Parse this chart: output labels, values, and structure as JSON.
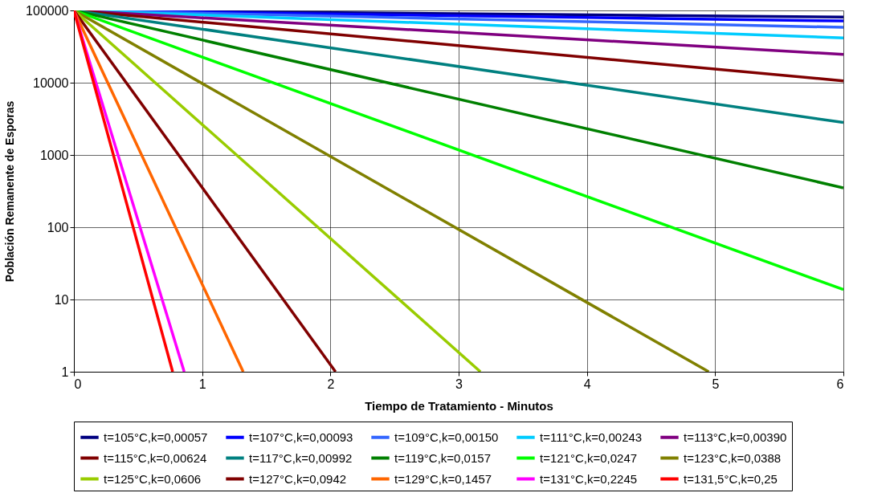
{
  "chart_data": {
    "type": "line",
    "xlabel": "Tiempo de Tratamiento - Minutos",
    "ylabel": "Población Remanente de Esporas",
    "log": "y",
    "grid": true,
    "legend": "bottom",
    "marker": "none",
    "line_style": "solid",
    "xlim": [
      0,
      6
    ],
    "xticks": [
      0,
      1,
      2,
      3,
      4,
      5,
      6
    ],
    "ylim": [
      1,
      100000
    ],
    "yticks": [
      1,
      10,
      100,
      1000,
      10000,
      100000
    ],
    "series": [
      {
        "name": "t=105°C,k=0,00057",
        "color": "#000080",
        "x": [
          0,
          6
        ],
        "values": [
          100000,
          81000
        ]
      },
      {
        "name": "t=107°C,k=0,00093",
        "color": "#0000ff",
        "x": [
          0,
          6
        ],
        "values": [
          100000,
          71500
        ]
      },
      {
        "name": "t=109°C,k=0,00150",
        "color": "#3366ff",
        "x": [
          0,
          6
        ],
        "values": [
          100000,
          58300
        ]
      },
      {
        "name": "t=111°C,k=0,00243",
        "color": "#00ccff",
        "x": [
          0,
          6
        ],
        "values": [
          100000,
          41700
        ]
      },
      {
        "name": "t=113°C,k=0,00390",
        "color": "#800080",
        "x": [
          0,
          6
        ],
        "values": [
          100000,
          24600
        ]
      },
      {
        "name": "t=115°C,k=0,00624",
        "color": "#800000",
        "x": [
          0,
          6
        ],
        "values": [
          100000,
          10600
        ]
      },
      {
        "name": "t=117°C,k=0,00992",
        "color": "#008080",
        "x": [
          0,
          6
        ],
        "values": [
          100000,
          2810
        ]
      },
      {
        "name": "t=119°C,k=0,0157",
        "color": "#008000",
        "x": [
          0,
          6
        ],
        "values": [
          100000,
          351
        ]
      },
      {
        "name": "t=121°C,k=0,0247",
        "color": "#00ff00",
        "x": [
          0,
          6
        ],
        "values": [
          100000,
          13.7
        ]
      },
      {
        "name": "t=123°C,k=0,0388",
        "color": "#808000",
        "x": [
          0,
          4.95
        ],
        "values": [
          100000,
          1
        ]
      },
      {
        "name": "t=125°C,k=0,0606",
        "color": "#99cc00",
        "x": [
          0,
          3.17
        ],
        "values": [
          100000,
          1
        ]
      },
      {
        "name": "t=127°C,k=0,0942",
        "color": "#800000",
        "x": [
          0,
          2.04
        ],
        "values": [
          100000,
          1
        ]
      },
      {
        "name": "t=129°C,k=0,1457",
        "color": "#ff6600",
        "x": [
          0,
          1.32
        ],
        "values": [
          100000,
          1
        ]
      },
      {
        "name": "t=131°C,k=0,2245",
        "color": "#ff00ff",
        "x": [
          0,
          0.86
        ],
        "values": [
          100000,
          1
        ]
      },
      {
        "name": "t=131,5°C,k=0,25",
        "color": "#ff0000",
        "x": [
          0,
          0.77
        ],
        "values": [
          100000,
          1
        ]
      }
    ]
  }
}
